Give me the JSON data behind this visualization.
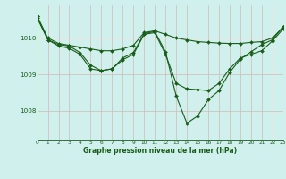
{
  "xlabel": "Graphe pression niveau de la mer (hPa)",
  "background_color": "#cff0ec",
  "grid_color": "#d4b8b8",
  "line_color": "#1a5c1a",
  "x_ticks": [
    0,
    1,
    2,
    3,
    4,
    5,
    6,
    7,
    8,
    9,
    10,
    11,
    12,
    13,
    14,
    15,
    16,
    17,
    18,
    19,
    20,
    21,
    22,
    23
  ],
  "y_ticks": [
    1008,
    1009,
    1010
  ],
  "ylim": [
    1007.2,
    1010.9
  ],
  "xlim": [
    0,
    23
  ],
  "line1_x": [
    0,
    1,
    2,
    3,
    4,
    5,
    6,
    7,
    8,
    9,
    10,
    11,
    12,
    13,
    14,
    15,
    16,
    17,
    18,
    19,
    20,
    21,
    22,
    23
  ],
  "line1_y": [
    1010.6,
    1010.0,
    1009.85,
    1009.8,
    1009.75,
    1009.7,
    1009.65,
    1009.65,
    1009.7,
    1009.8,
    1010.15,
    1010.2,
    1010.1,
    1010.0,
    1009.95,
    1009.9,
    1009.88,
    1009.86,
    1009.85,
    1009.85,
    1009.88,
    1009.9,
    1010.0,
    1010.3
  ],
  "line2_x": [
    0,
    1,
    2,
    3,
    4,
    5,
    6,
    7,
    8,
    9,
    10,
    11,
    12,
    13,
    14,
    15,
    16,
    17,
    18,
    19,
    20,
    21,
    22,
    23
  ],
  "line2_y": [
    1010.55,
    1009.95,
    1009.78,
    1009.72,
    1009.55,
    1009.15,
    1009.1,
    1009.15,
    1009.4,
    1009.55,
    1010.1,
    1010.15,
    1009.55,
    1008.75,
    1008.6,
    1008.58,
    1008.55,
    1008.75,
    1009.15,
    1009.45,
    1009.55,
    1009.65,
    1009.92,
    1010.25
  ],
  "line3_x": [
    0,
    1,
    2,
    3,
    4,
    5,
    6,
    7,
    8,
    9,
    10,
    11,
    12,
    13,
    14,
    15,
    16,
    17,
    18,
    19,
    20,
    21,
    22,
    23
  ],
  "line3_y": [
    1010.6,
    1009.95,
    1009.82,
    1009.78,
    1009.6,
    1009.25,
    1009.1,
    1009.15,
    1009.45,
    1009.6,
    1010.12,
    1010.18,
    1009.62,
    1008.4,
    1007.65,
    1007.85,
    1008.3,
    1008.55,
    1009.05,
    1009.42,
    1009.62,
    1009.82,
    1009.95,
    1010.32
  ]
}
